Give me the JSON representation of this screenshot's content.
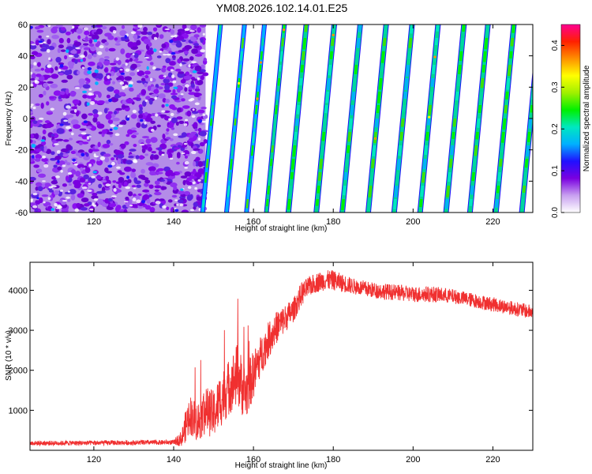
{
  "title": "YM08.2026.102.14.01.E25",
  "chart_data": [
    {
      "type": "heatmap",
      "xlabel": "Height of straight line (km)",
      "ylabel": "Frequency (Hz)",
      "xlim": [
        104,
        230
      ],
      "ylim": [
        -60,
        60
      ],
      "x_ticks": [
        "120",
        "140",
        "160",
        "180",
        "200",
        "220"
      ],
      "y_ticks": [
        "60",
        "40",
        "20",
        "0",
        "-20",
        "-40",
        "-60"
      ],
      "noise_region_x": [
        104,
        148
      ],
      "stripe_crossings_km": [
        149.5,
        155.5,
        160.5,
        165.5,
        171,
        178,
        184.5,
        191,
        197.5,
        204,
        210.5,
        216.5,
        223,
        229.5
      ],
      "stripe_slope_km_per_120hz": 4.5,
      "colorbar": {
        "label": "Normalized spectral amplitude",
        "range": [
          0.0,
          0.45
        ],
        "ticks": [
          "0.0",
          "0.1",
          "0.2",
          "0.3",
          "0.4"
        ],
        "colors": [
          "#ffffff",
          "#c8a0f0",
          "#7a00e0",
          "#2010ff",
          "#00b0ff",
          "#00e8c0",
          "#00f000",
          "#a0f000",
          "#ffff00",
          "#ff9000",
          "#ff2000",
          "#ff0090"
        ]
      },
      "grid": false
    },
    {
      "type": "line",
      "xlabel": "Height of straight line (km)",
      "ylabel": "SNR (10 * v/v)",
      "xlim": [
        104,
        230
      ],
      "ylim": [
        0,
        4700
      ],
      "x_ticks": [
        "120",
        "140",
        "160",
        "180",
        "200",
        "220"
      ],
      "y_ticks": [
        "1000",
        "2000",
        "3000",
        "4000"
      ],
      "line_color": "#f03030",
      "series": [
        {
          "x": [
            104,
            110,
            120,
            130,
            140,
            142,
            143,
            144,
            146,
            148,
            150,
            152,
            154,
            156,
            158,
            160,
            162,
            164,
            166,
            168,
            170,
            172,
            174,
            176,
            178,
            180,
            185,
            190,
            195,
            200,
            205,
            210,
            215,
            220,
            225,
            230
          ],
          "values": [
            180,
            180,
            185,
            190,
            200,
            300,
            600,
            900,
            700,
            1000,
            900,
            1300,
            1600,
            1900,
            1400,
            1900,
            2400,
            2800,
            3100,
            3300,
            3500,
            3900,
            4100,
            4200,
            4250,
            4250,
            4100,
            4000,
            3950,
            3900,
            3900,
            3850,
            3750,
            3650,
            3550,
            3450
          ],
          "noise_amplitude": [
            60,
            60,
            60,
            60,
            60,
            200,
            400,
            500,
            500,
            600,
            600,
            700,
            700,
            800,
            700,
            600,
            500,
            450,
            400,
            350,
            300,
            300,
            250,
            250,
            250,
            250,
            200,
            200,
            200,
            200,
            200,
            180,
            180,
            180,
            180,
            180
          ]
        }
      ],
      "grid": false
    }
  ]
}
